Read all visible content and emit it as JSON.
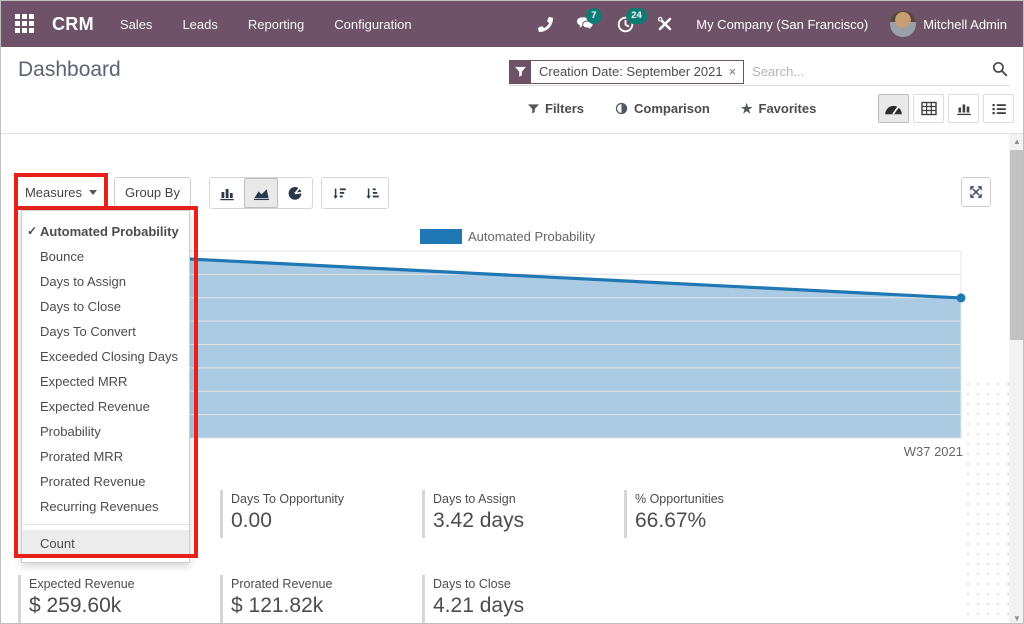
{
  "topbar": {
    "app_name": "CRM",
    "menus": [
      "Sales",
      "Leads",
      "Reporting",
      "Configuration"
    ],
    "chat_badge": "7",
    "activity_badge": "24",
    "company": "My Company (San Francisco)",
    "user": "Mitchell Admin"
  },
  "header": {
    "title": "Dashboard",
    "facet_label": "Creation Date: September 2021",
    "facet_close": "×",
    "search_placeholder": "Search...",
    "filters_label": "Filters",
    "comparison_label": "Comparison",
    "favorites_label": "Favorites"
  },
  "toolbar": {
    "measures_label": "Measures",
    "group_by_label": "Group By"
  },
  "measures_menu": {
    "items": [
      {
        "label": "Automated Probability",
        "checked": true
      },
      {
        "label": "Bounce"
      },
      {
        "label": "Days to Assign"
      },
      {
        "label": "Days to Close"
      },
      {
        "label": "Days To Convert"
      },
      {
        "label": "Exceeded Closing Days"
      },
      {
        "label": "Expected MRR"
      },
      {
        "label": "Expected Revenue"
      },
      {
        "label": "Probability"
      },
      {
        "label": "Prorated MRR"
      },
      {
        "label": "Prorated Revenue"
      },
      {
        "label": "Recurring Revenues"
      }
    ],
    "footer_item": "Count"
  },
  "chart_data": {
    "type": "area",
    "title": "",
    "legend": [
      "Automated Probability"
    ],
    "legend_position": "top-center",
    "x_ticks": [
      "W37 2021"
    ],
    "grid": true,
    "gridline_count": 9,
    "series": [
      {
        "name": "Automated Probability",
        "points_frac": [
          [
            0,
            0.0
          ],
          [
            1,
            0.251
          ]
        ]
      }
    ],
    "colors": {
      "line": "#1f77b4",
      "fill": "#abcbe3",
      "grid": "#e4e4e4"
    }
  },
  "kpis": {
    "row1": [
      {
        "label": "Days To Opportunity",
        "value": "0.00"
      },
      {
        "label": "Days to Assign",
        "value": "3.42 days"
      },
      {
        "label": "% Opportunities",
        "value": "66.67%"
      }
    ],
    "row2": [
      {
        "label": "Expected Revenue",
        "value": "$ 259.60k"
      },
      {
        "label": "Prorated Revenue",
        "value": "$ 121.82k"
      },
      {
        "label": "Days to Close",
        "value": "4.21 days"
      }
    ]
  },
  "colors": {
    "topbar": "#6e5268",
    "accent": "#6d5166",
    "badge": "#0e7c74",
    "annotation_red": "#e8201a"
  }
}
